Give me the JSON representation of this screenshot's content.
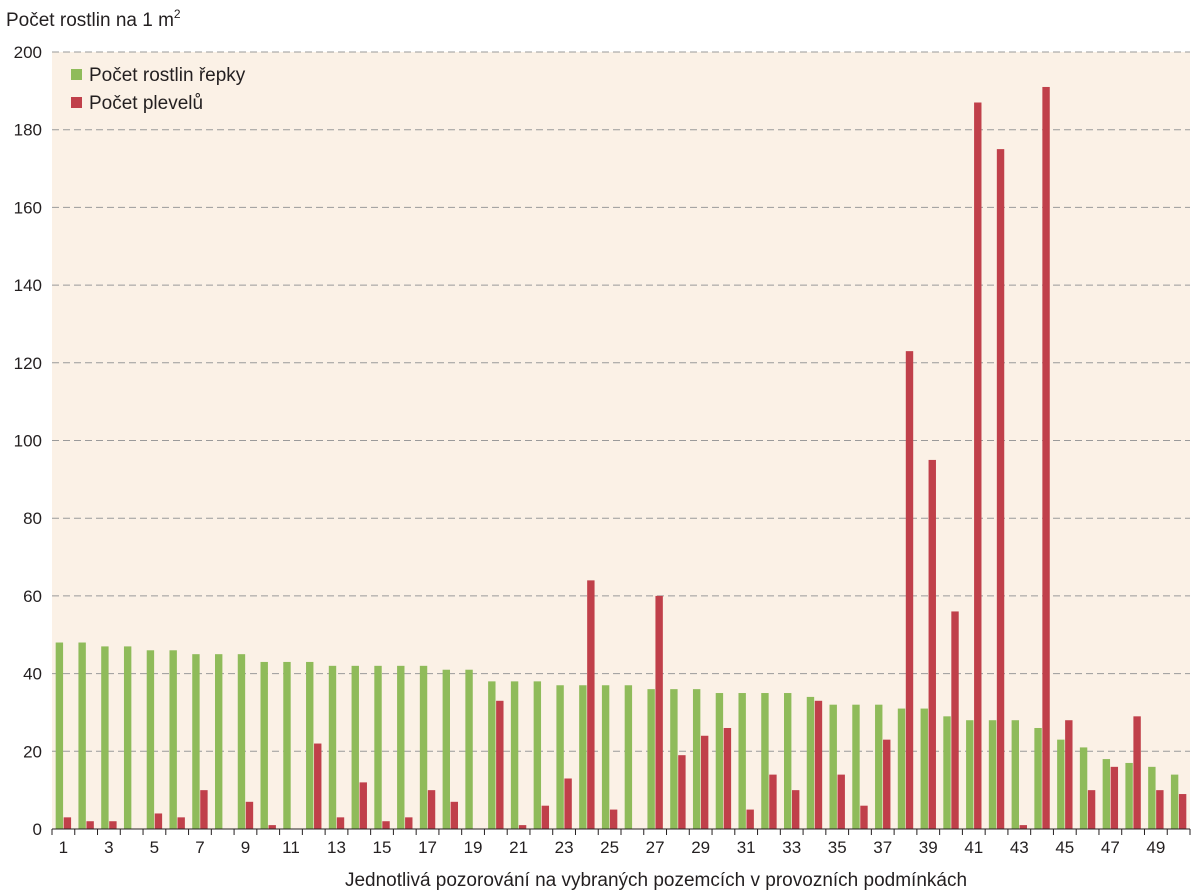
{
  "chart_data": {
    "type": "bar",
    "ylabel": "Počet rostlin na 1 m",
    "ylabel_superscript": "2",
    "xlabel": "Jednotlivá pozorování na vybraných pozemcích v provozních podmínkách",
    "ylim": [
      0,
      200
    ],
    "yticks": [
      0,
      20,
      40,
      60,
      80,
      100,
      120,
      140,
      160,
      180,
      200
    ],
    "grid": "horizontal dashed",
    "legend_position": "top-left",
    "plot_background": "#fbf1e6",
    "categories": [
      1,
      2,
      3,
      4,
      5,
      6,
      7,
      8,
      9,
      10,
      11,
      12,
      13,
      14,
      15,
      16,
      17,
      18,
      19,
      20,
      21,
      22,
      23,
      24,
      25,
      26,
      27,
      28,
      29,
      30,
      31,
      32,
      33,
      34,
      35,
      36,
      37,
      38,
      39,
      40,
      41,
      42,
      43,
      44,
      45,
      46,
      47,
      48,
      49,
      50
    ],
    "x_tick_labels": [
      "1",
      "3",
      "5",
      "7",
      "9",
      "11",
      "13",
      "15",
      "17",
      "19",
      "21",
      "23",
      "25",
      "27",
      "29",
      "31",
      "33",
      "35",
      "37",
      "39",
      "41",
      "43",
      "45",
      "47",
      "49"
    ],
    "series": [
      {
        "name": "Počet rostlin řepky",
        "color": "#8fbb5a",
        "values": [
          48,
          48,
          47,
          47,
          46,
          46,
          45,
          45,
          45,
          43,
          43,
          43,
          42,
          42,
          42,
          42,
          42,
          41,
          41,
          38,
          38,
          38,
          37,
          37,
          37,
          37,
          36,
          36,
          36,
          35,
          35,
          35,
          35,
          34,
          32,
          32,
          32,
          31,
          31,
          29,
          28,
          28,
          28,
          26,
          23,
          21,
          18,
          17,
          16,
          14
        ]
      },
      {
        "name": "Počet plevelů",
        "color": "#c0404a",
        "values": [
          3,
          2,
          2,
          0,
          4,
          3,
          10,
          0,
          7,
          1,
          0,
          22,
          3,
          12,
          2,
          3,
          10,
          7,
          0,
          33,
          1,
          6,
          13,
          64,
          5,
          0,
          60,
          19,
          24,
          26,
          5,
          14,
          10,
          33,
          14,
          6,
          23,
          123,
          95,
          56,
          187,
          175,
          1,
          191,
          28,
          10,
          16,
          29,
          10,
          9
        ]
      }
    ]
  }
}
